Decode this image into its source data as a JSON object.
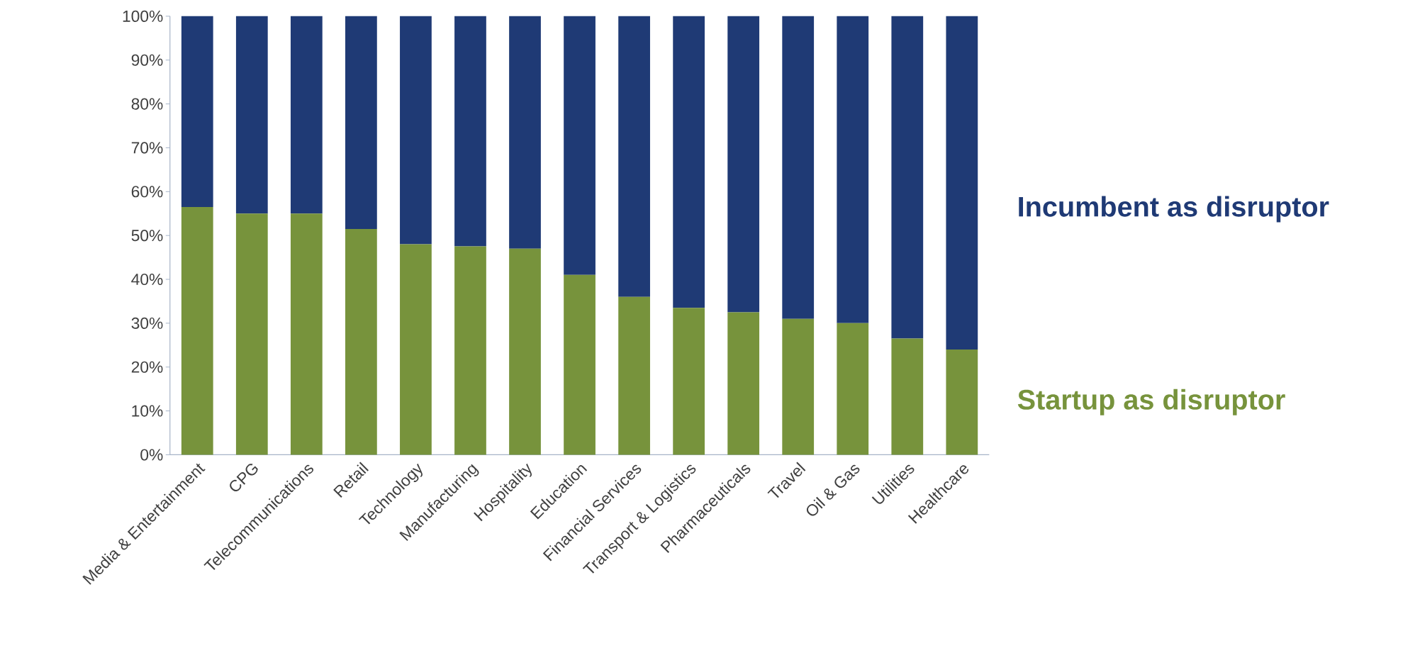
{
  "chart_data": {
    "type": "bar",
    "stacked": true,
    "categories": [
      "Media & Entertainment",
      "CPG",
      "Telecommunications",
      "Retail",
      "Technology",
      "Manufacturing",
      "Hospitality",
      "Education",
      "Financial Services",
      "Transport & Logistics",
      "Pharmaceuticals",
      "Travel",
      "Oil & Gas",
      "Utilities",
      "Healthcare"
    ],
    "series": [
      {
        "name": "Startup as disruptor",
        "color": "#77933c",
        "values": [
          56.5,
          55,
          55,
          51.5,
          48,
          47.5,
          47,
          41,
          36,
          33.5,
          32.5,
          31,
          30,
          26.5,
          24
        ]
      },
      {
        "name": "Incumbent as disruptor",
        "color": "#1f3a75",
        "values": [
          43.5,
          45,
          45,
          48.5,
          52,
          52.5,
          53,
          59,
          64,
          66.5,
          67.5,
          69,
          70,
          73.5,
          76
        ]
      }
    ],
    "ylim": [
      0,
      100
    ],
    "yticks": [
      {
        "value": 0,
        "label": "0%"
      },
      {
        "value": 10,
        "label": "10%"
      },
      {
        "value": 20,
        "label": "20%"
      },
      {
        "value": 30,
        "label": "30%"
      },
      {
        "value": 40,
        "label": "40%"
      },
      {
        "value": 50,
        "label": "50%"
      },
      {
        "value": 60,
        "label": "60%"
      },
      {
        "value": 70,
        "label": "70%"
      },
      {
        "value": 80,
        "label": "80%"
      },
      {
        "value": 90,
        "label": "90%"
      },
      {
        "value": 100,
        "label": "100%"
      }
    ],
    "legend": "right"
  }
}
